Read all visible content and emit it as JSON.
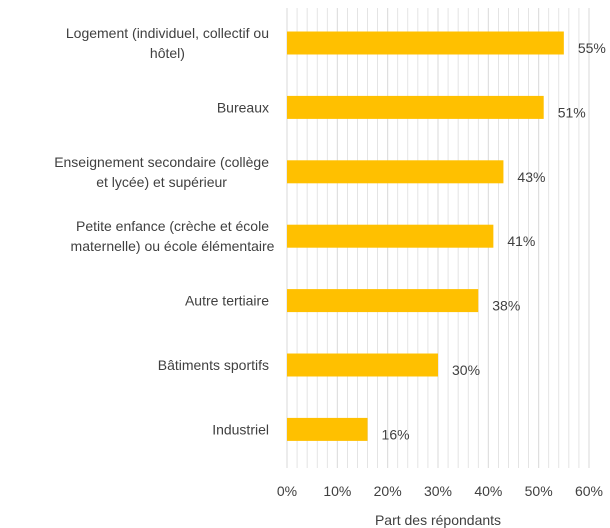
{
  "chart_data": {
    "type": "bar",
    "orientation": "horizontal",
    "categories": [
      [
        "Logement (individuel, collectif ou",
        "hôtel)"
      ],
      [
        "Bureaux"
      ],
      [
        "Enseignement secondaire (collège",
        "et lycée) et supérieur"
      ],
      [
        "Petite enfance (crèche et école",
        "maternelle) ou école élémentaire"
      ],
      [
        "Autre tertiaire"
      ],
      [
        "Bâtiments sportifs"
      ],
      [
        "Industriel"
      ]
    ],
    "values": [
      55,
      51,
      43,
      41,
      38,
      30,
      16
    ],
    "data_labels": [
      "55%",
      "51%",
      "43%",
      "41%",
      "38%",
      "30%",
      "16%"
    ],
    "x_ticks": [
      "0%",
      "10%",
      "20%",
      "30%",
      "40%",
      "50%",
      "60%"
    ],
    "xlim": [
      0,
      60
    ],
    "xlabel": "Part des répondants",
    "ylabel": "",
    "title": "",
    "grid": "vertical",
    "bar_color": "#FFC000",
    "grid_color": "#D9D9D9",
    "text_color": "#404040"
  }
}
